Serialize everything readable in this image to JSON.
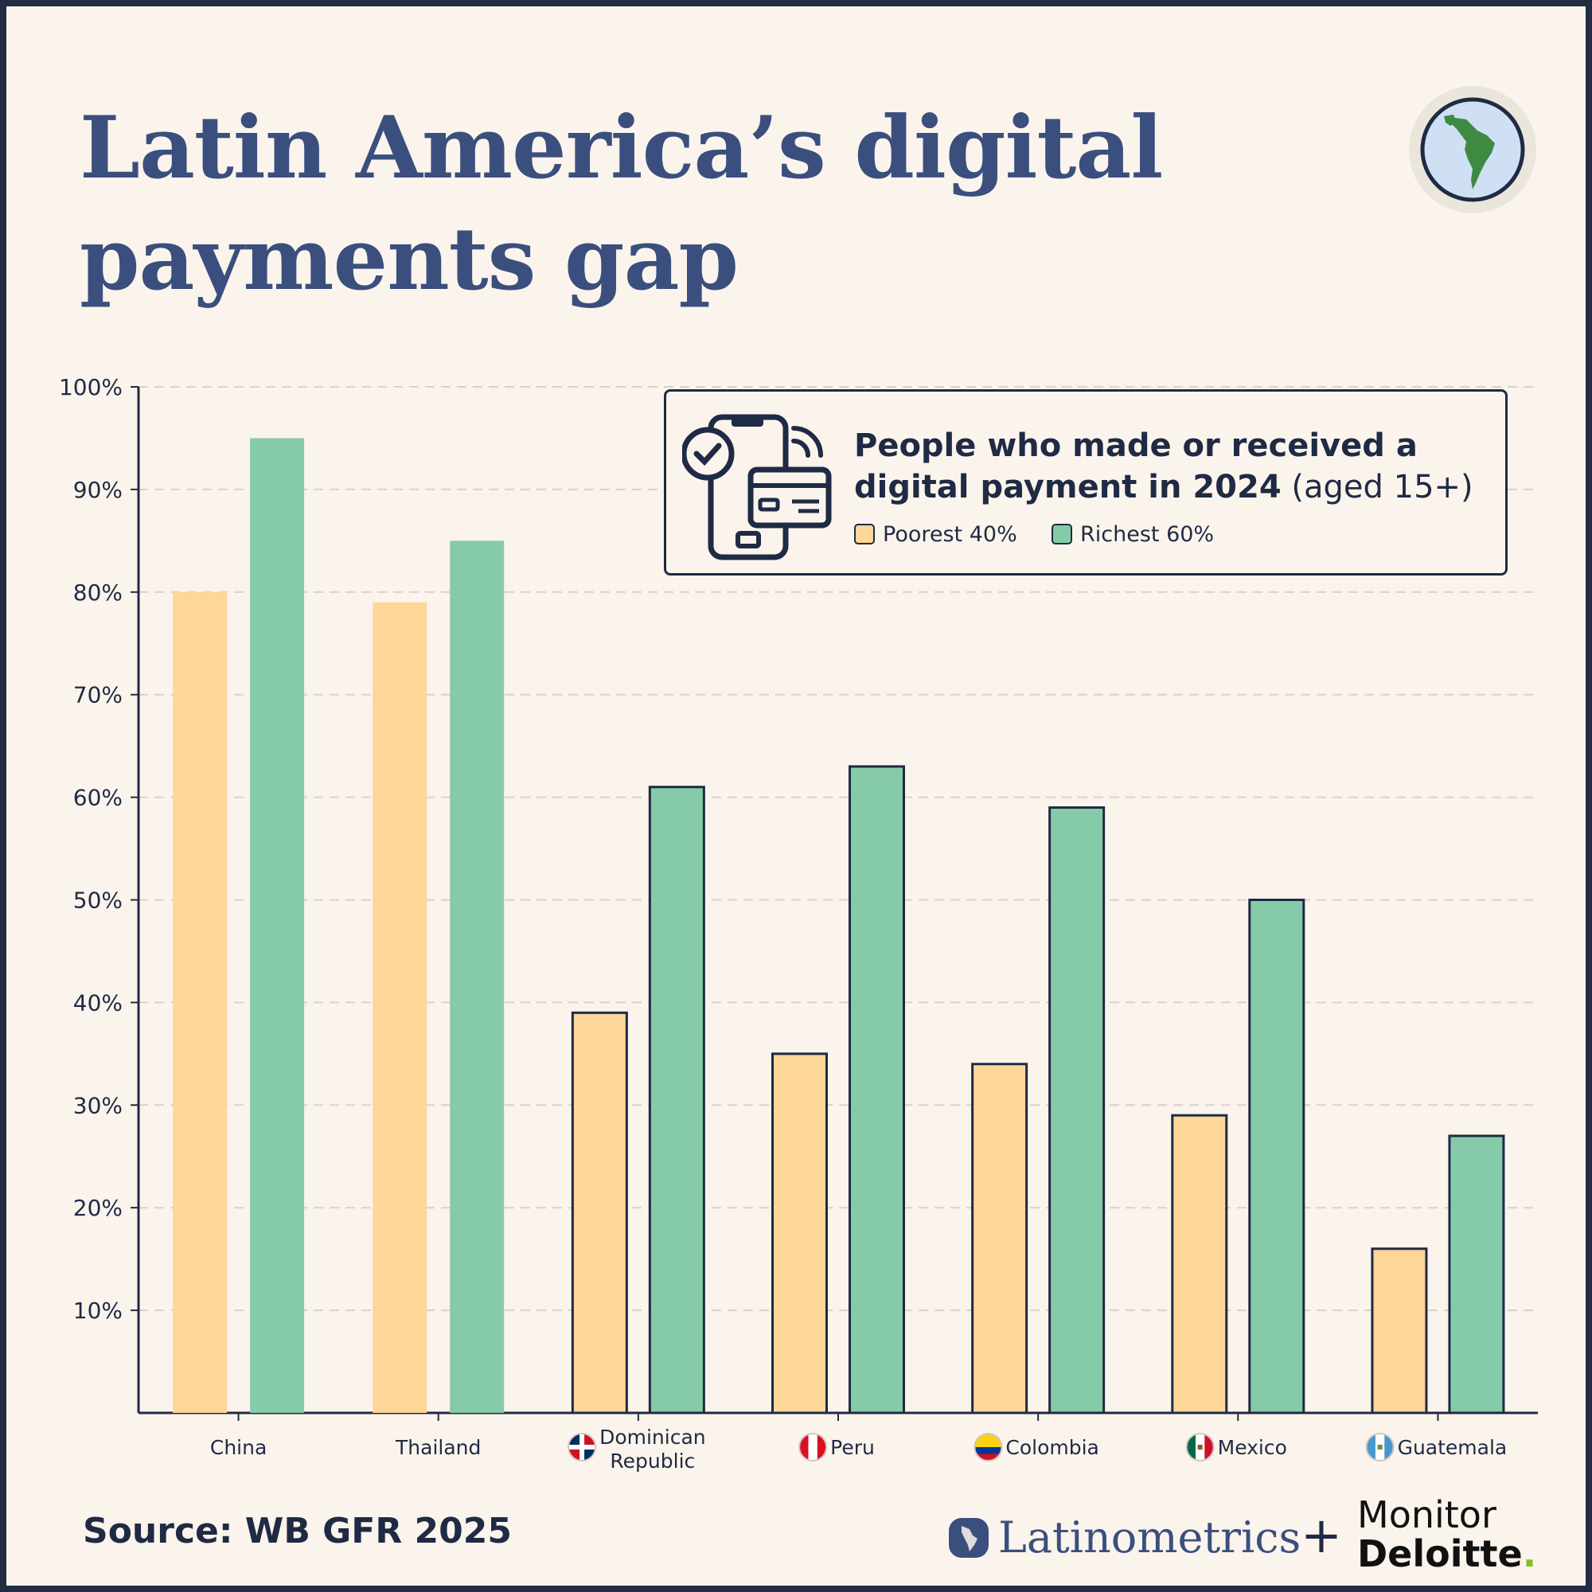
{
  "header": {
    "title_line1": "Latin America’s digital",
    "title_line2": "payments gap"
  },
  "legend": {
    "title_bold_line1": "People who made or received a",
    "title_bold_line2": "digital payment in 2024",
    "title_suffix": " (aged 15+)",
    "poorest_label": "Poorest 40%",
    "richest_label": "Richest 60%"
  },
  "footer": {
    "source": "Source: WB GFR 2025",
    "brand1": "Latinometrics",
    "plus": "+",
    "brand2_line1": "Monitor",
    "brand2_line2": "Deloitte",
    "brand2_dot": "."
  },
  "colors": {
    "poorest": "#fed698",
    "richest": "#86cba9",
    "outline": "#1f2a44",
    "title": "#3b4f7e",
    "grid": "#d9d2c8",
    "background": "#fbf4ec"
  },
  "chart_data": {
    "type": "bar",
    "categories": [
      "China",
      "Thailand",
      "Dominican Republic",
      "Peru",
      "Colombia",
      "Mexico",
      "Guatemala"
    ],
    "category_labels": [
      [
        "China"
      ],
      [
        "Thailand"
      ],
      [
        "Dominican",
        "Republic"
      ],
      [
        "Peru"
      ],
      [
        "Colombia"
      ],
      [
        "Mexico"
      ],
      [
        "Guatemala"
      ]
    ],
    "flag_icons": [
      null,
      null,
      "dominican-republic-flag-icon",
      "peru-flag-icon",
      "colombia-flag-icon",
      "mexico-flag-icon",
      "guatemala-flag-icon"
    ],
    "outlined": [
      false,
      false,
      true,
      true,
      true,
      true,
      true
    ],
    "series": [
      {
        "name": "Poorest 40%",
        "values": [
          80,
          79,
          39,
          35,
          34,
          29,
          16
        ]
      },
      {
        "name": "Richest 60%",
        "values": [
          95,
          85,
          61,
          63,
          59,
          50,
          27
        ]
      }
    ],
    "ylim": [
      0,
      100
    ],
    "yticks": [
      10,
      20,
      30,
      40,
      50,
      60,
      70,
      80,
      90,
      100
    ],
    "ytick_labels": [
      "10%",
      "20%",
      "30%",
      "40%",
      "50%",
      "60%",
      "70%",
      "80%",
      "90%",
      "100%"
    ],
    "grid": true,
    "legend_position": "top-right"
  }
}
